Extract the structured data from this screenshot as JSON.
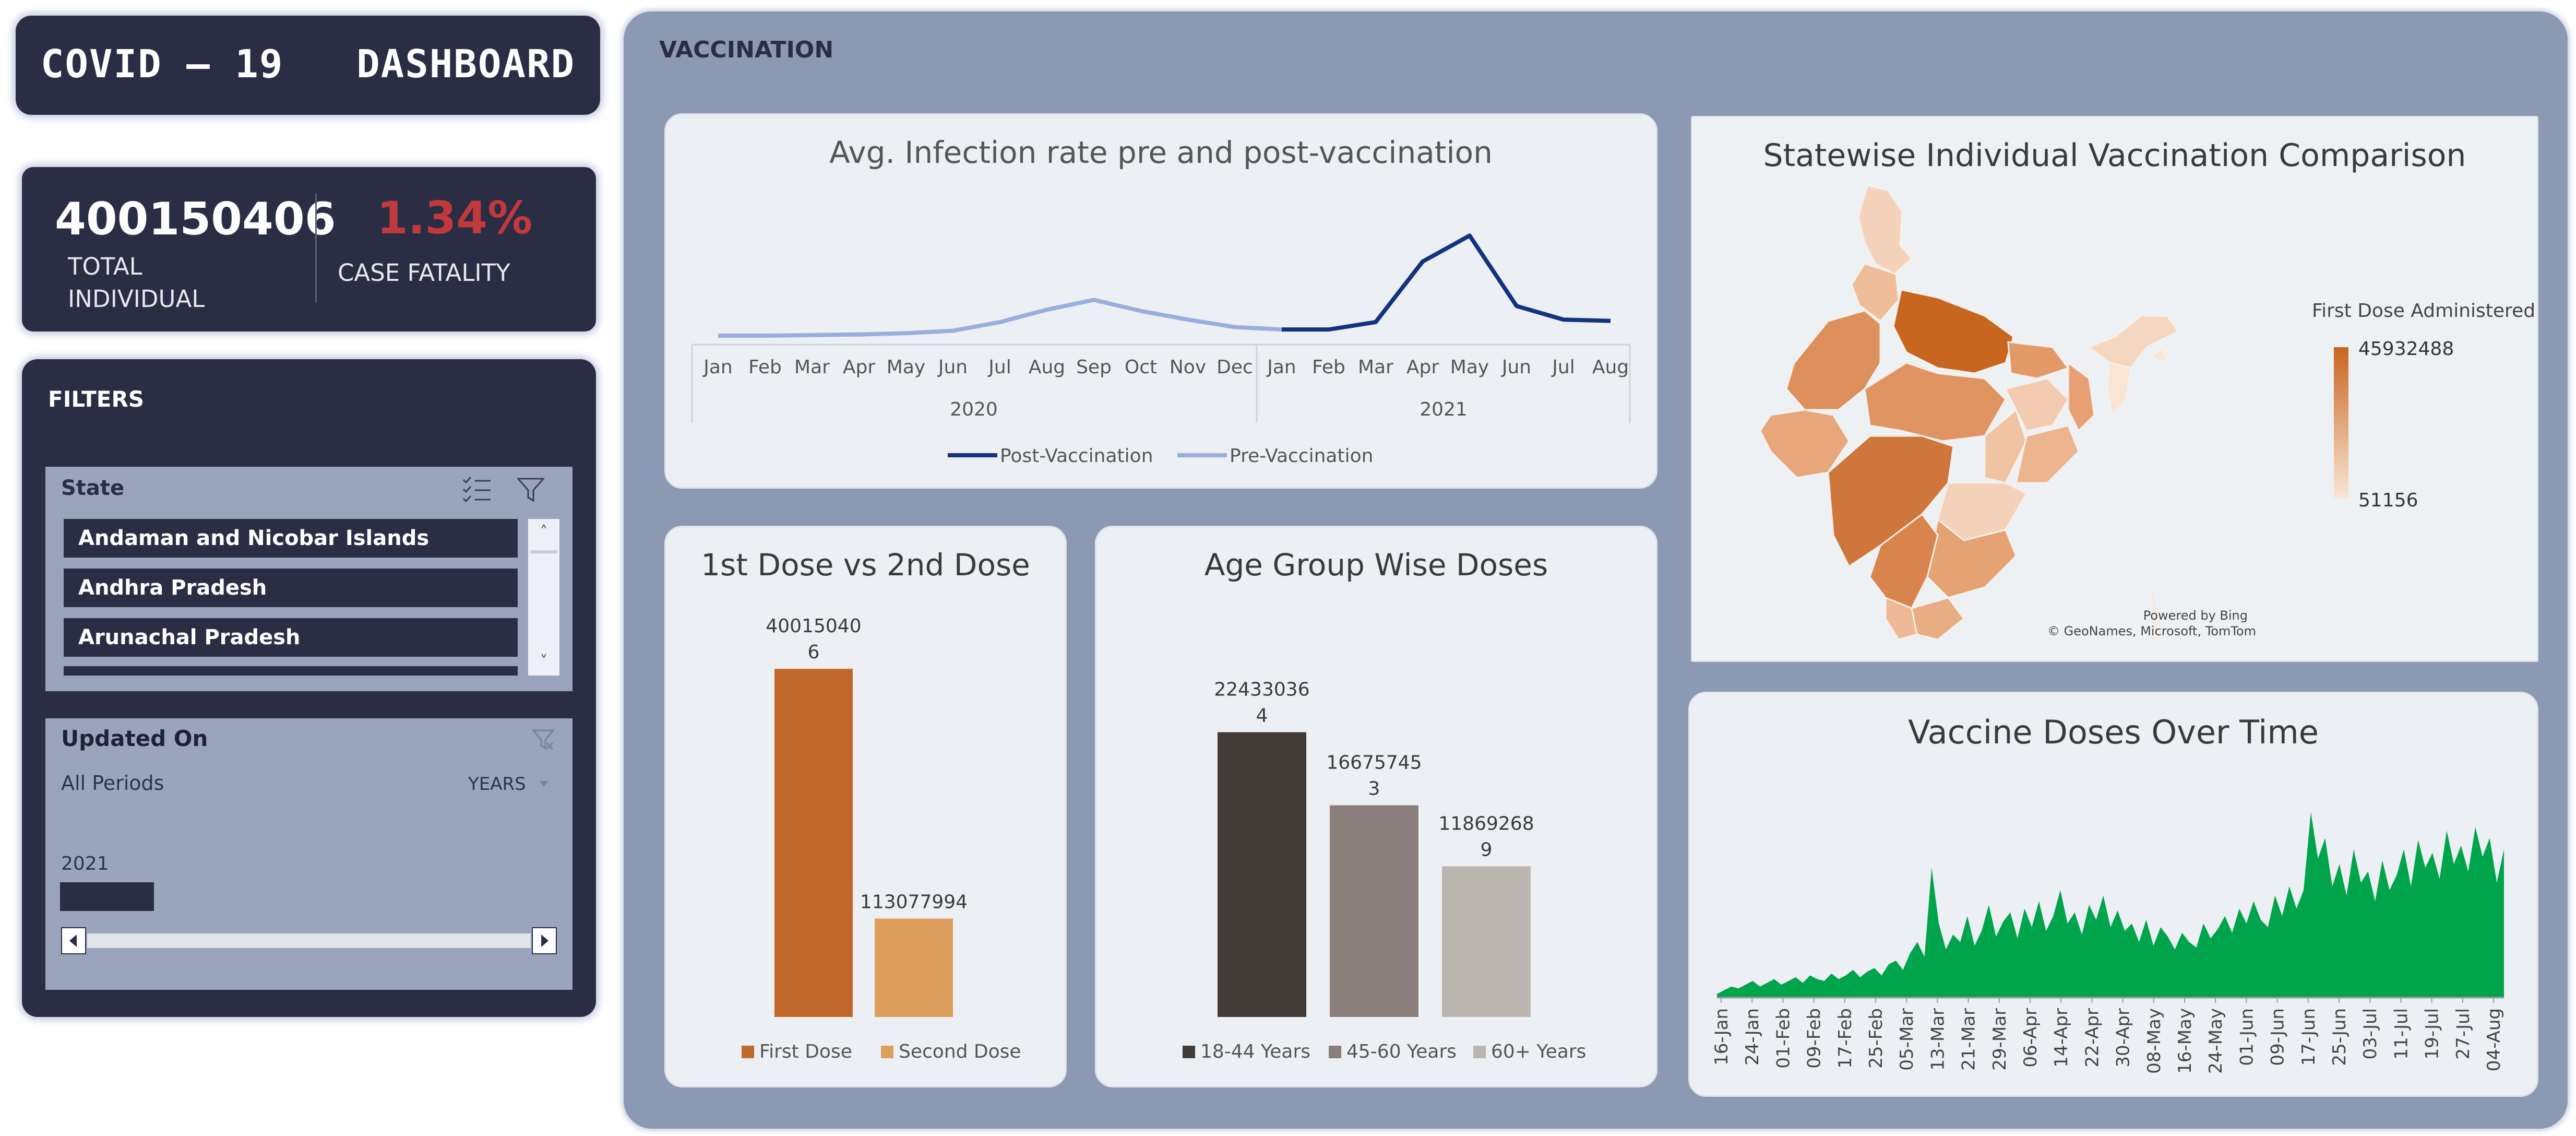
{
  "dashboard_title": "COVID – 19   DASHBOARD",
  "kpis": {
    "total": {
      "value": "400150406",
      "label": "TOTAL INDIVIDUAL"
    },
    "fatality": {
      "value": "1.34%",
      "label": "CASE FATALITY",
      "color": "#c0393b"
    }
  },
  "filters": {
    "title": "FILTERS",
    "state_slicer": {
      "title": "State",
      "items": [
        "Andaman and Nicobar Islands",
        "Andhra Pradesh",
        "Arunachal Pradesh"
      ],
      "icons": [
        "multi-select-icon",
        "clear-filter-icon",
        "scroll-up-icon",
        "scroll-down-icon"
      ]
    },
    "timeline": {
      "title": "Updated On",
      "period_label": "All Periods",
      "level": "YEARS",
      "year": "2021",
      "icons": [
        "clear-filter-icon",
        "dropdown-arrow-icon",
        "scroll-left-icon",
        "scroll-right-icon"
      ]
    }
  },
  "section_title": "VACCINATION",
  "colors": {
    "navy": "#2b2d45",
    "panel": "#8b99b3",
    "card": "#eceff3",
    "post_vaccination": "#14337f",
    "pre_vaccination": "#9aaede",
    "first_dose": "#c0692a",
    "second_dose": "#dca05c",
    "age_18_44": "#433b37",
    "age_45_60": "#8a7f7a",
    "age_60_plus": "#bcb6b0",
    "area_green": "#00a54b",
    "map_high": "#c8651f",
    "map_low": "#fbe6d6"
  },
  "chart_data": [
    {
      "type": "line",
      "title": "Avg. Infection rate pre and post-vaccination",
      "x_months": [
        "Jan",
        "Feb",
        "Mar",
        "Apr",
        "May",
        "Jun",
        "Jul",
        "Aug",
        "Sep",
        "Oct",
        "Nov",
        "Dec",
        "Jan",
        "Feb",
        "Mar",
        "Apr",
        "May",
        "Jun",
        "Jul",
        "Aug"
      ],
      "x_years": [
        "2020",
        "2021"
      ],
      "ylim": [
        0,
        0.9
      ],
      "series": [
        {
          "name": "Pre-Vaccination",
          "values": [
            0,
            0,
            0.005,
            0.01,
            0.02,
            0.04,
            0.11,
            0.21,
            0.29,
            0.2,
            0.13,
            0.07,
            0.05,
            null,
            null,
            null,
            null,
            null,
            null,
            null
          ]
        },
        {
          "name": "Post-Vaccination",
          "values": [
            null,
            null,
            null,
            null,
            null,
            null,
            null,
            null,
            null,
            null,
            null,
            null,
            0.05,
            0.05,
            0.11,
            0.6,
            0.81,
            0.24,
            0.13,
            0.12
          ]
        }
      ],
      "legend": [
        "Post-Vaccination",
        "Pre-Vaccination"
      ],
      "legend_position": "bottom",
      "grid": false
    },
    {
      "type": "bar",
      "title": "1st Dose vs 2nd Dose",
      "categories": [
        "First Dose",
        "Second Dose"
      ],
      "values": [
        400150406,
        113077994
      ],
      "data_labels": [
        [
          "40015040",
          "6"
        ],
        [
          "113077994"
        ]
      ],
      "ylim": [
        0,
        420000000
      ],
      "legend_position": "bottom"
    },
    {
      "type": "bar",
      "title": "Age Group Wise Doses",
      "categories": [
        "18-44 Years",
        "45-60 Years",
        "60+ Years"
      ],
      "values": [
        224330364,
        166757453,
        118692689
      ],
      "data_labels": [
        [
          "22433036",
          "4"
        ],
        [
          "16675745",
          "3"
        ],
        [
          "11869268",
          "9"
        ]
      ],
      "ylim": [
        0,
        235000000
      ],
      "legend_position": "bottom"
    },
    {
      "type": "map",
      "title": "Statewise Individual Vaccination Comparison",
      "legend_title": "First Dose Administered",
      "range": [
        51156,
        45932488
      ],
      "max_label": "45932488",
      "min_label": "51156",
      "attribution": [
        "Powered by Bing",
        "© GeoNames, Microsoft, TomTom"
      ]
    },
    {
      "type": "area",
      "title": "Vaccine Doses Over Time",
      "x_tick_labels": [
        "16-Jan",
        "24-Jan",
        "01-Feb",
        "09-Feb",
        "17-Feb",
        "25-Feb",
        "05-Mar",
        "13-Mar",
        "21-Mar",
        "29-Mar",
        "06-Apr",
        "14-Apr",
        "22-Apr",
        "30-Apr",
        "08-May",
        "16-May",
        "24-May",
        "01-Jun",
        "09-Jun",
        "17-Jun",
        "25-Jun",
        "03-Jul",
        "11-Jul",
        "19-Jul",
        "27-Jul",
        "04-Aug"
      ],
      "values": [
        0.02,
        0.04,
        0.06,
        0.05,
        0.07,
        0.09,
        0.06,
        0.08,
        0.1,
        0.07,
        0.09,
        0.11,
        0.08,
        0.12,
        0.1,
        0.09,
        0.13,
        0.1,
        0.12,
        0.15,
        0.11,
        0.14,
        0.16,
        0.12,
        0.18,
        0.2,
        0.15,
        0.24,
        0.3,
        0.22,
        0.7,
        0.4,
        0.26,
        0.34,
        0.3,
        0.44,
        0.28,
        0.36,
        0.5,
        0.33,
        0.41,
        0.46,
        0.32,
        0.48,
        0.38,
        0.52,
        0.36,
        0.44,
        0.58,
        0.4,
        0.46,
        0.34,
        0.5,
        0.42,
        0.55,
        0.38,
        0.47,
        0.36,
        0.4,
        0.3,
        0.42,
        0.28,
        0.38,
        0.33,
        0.26,
        0.35,
        0.3,
        0.27,
        0.4,
        0.32,
        0.37,
        0.44,
        0.35,
        0.48,
        0.4,
        0.52,
        0.42,
        0.38,
        0.55,
        0.44,
        0.6,
        0.48,
        0.58,
        1.0,
        0.75,
        0.86,
        0.6,
        0.72,
        0.55,
        0.8,
        0.62,
        0.68,
        0.52,
        0.74,
        0.58,
        0.66,
        0.8,
        0.6,
        0.85,
        0.7,
        0.78,
        0.64,
        0.9,
        0.72,
        0.82,
        0.68,
        0.92,
        0.76,
        0.86,
        0.62,
        0.8
      ],
      "ylim": [
        0,
        1.05
      ]
    }
  ]
}
